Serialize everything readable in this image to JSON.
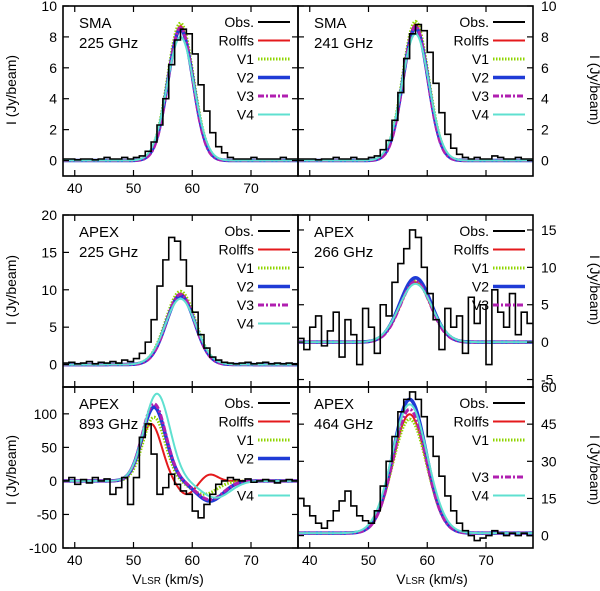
{
  "figure": {
    "xlabel_prefix": "V",
    "xlabel_sub": "LSR",
    "xlabel_suffix": " (km/s)",
    "ylabel": "I (Jy/beam)"
  },
  "legend_entries": [
    {
      "name": "Obs.",
      "color": "#000000",
      "style": "solid"
    },
    {
      "name": "Rolffs",
      "color": "#e41a1c",
      "style": "solid"
    },
    {
      "name": "V1",
      "color": "#8fd400",
      "style": "dotted"
    },
    {
      "name": "V2",
      "color": "#1f3bd6",
      "style": "thick"
    },
    {
      "name": "V3",
      "color": "#b01fb0",
      "style": "dashdot"
    },
    {
      "name": "V4",
      "color": "#5fe0d0",
      "style": "solid"
    }
  ],
  "chart_data": [
    {
      "type": "line",
      "id": "p1",
      "title_line1": "SMA",
      "title_line2": "225 GHz",
      "xlim": [
        38,
        78
      ],
      "ylim": [
        -1,
        10
      ],
      "xticks": [
        "40",
        "50",
        "60",
        "70"
      ],
      "xtick_values": [
        40,
        50,
        60,
        70
      ],
      "yticks": [
        "0",
        "2",
        "4",
        "6",
        "8",
        "10"
      ],
      "ytick_values": [
        0,
        2,
        4,
        6,
        8,
        10
      ],
      "ytick_side": "left",
      "legend_hidden": [],
      "series": [
        {
          "name": "Rolffs",
          "center": 58,
          "amp": 8.7,
          "sigma": 2.1
        },
        {
          "name": "V1",
          "center": 58,
          "amp": 8.9,
          "sigma": 2.2
        },
        {
          "name": "V2",
          "center": 58,
          "amp": 8.5,
          "sigma": 2.15
        },
        {
          "name": "V3",
          "center": 58,
          "amp": 8.6,
          "sigma": 2.1
        },
        {
          "name": "V4",
          "center": 58,
          "amp": 8.0,
          "sigma": 2.3
        }
      ],
      "obs": {
        "start": 38,
        "step": 1,
        "values": [
          0.1,
          0.1,
          0.05,
          0.1,
          0.1,
          0.05,
          0.1,
          0.2,
          0.1,
          0.1,
          0.2,
          0.1,
          0.2,
          0.3,
          0.6,
          1.2,
          2.3,
          4.0,
          6.2,
          7.8,
          8.5,
          8.2,
          6.9,
          4.9,
          3.2,
          1.8,
          0.9,
          0.5,
          0.2,
          0.1,
          0.1,
          0.1,
          0.2,
          0.1,
          0.1,
          0.1,
          0.1,
          0.2,
          0.1,
          0.1
        ]
      }
    },
    {
      "type": "line",
      "id": "p2",
      "title_line1": "SMA",
      "title_line2": "241 GHz",
      "xlim": [
        38,
        78
      ],
      "ylim": [
        -1,
        10
      ],
      "xticks": [],
      "xtick_values": [
        40,
        50,
        60,
        70
      ],
      "yticks": [
        "0",
        "2",
        "4",
        "6",
        "8",
        "10"
      ],
      "ytick_values": [
        0,
        2,
        4,
        6,
        8,
        10
      ],
      "ytick_side": "right",
      "legend_hidden": [],
      "series": [
        {
          "name": "Rolffs",
          "center": 58,
          "amp": 8.8,
          "sigma": 2.1
        },
        {
          "name": "V1",
          "center": 58,
          "amp": 9.0,
          "sigma": 2.2
        },
        {
          "name": "V2",
          "center": 58,
          "amp": 8.6,
          "sigma": 2.15
        },
        {
          "name": "V3",
          "center": 58,
          "amp": 8.7,
          "sigma": 2.1
        },
        {
          "name": "V4",
          "center": 58,
          "amp": 8.2,
          "sigma": 2.3
        }
      ],
      "obs": {
        "start": 38,
        "step": 1,
        "values": [
          0.1,
          0.1,
          0.1,
          0.05,
          0.1,
          0.1,
          0.2,
          0.1,
          0.1,
          0.2,
          0.1,
          0.1,
          0.2,
          0.3,
          0.7,
          1.3,
          2.6,
          4.4,
          6.6,
          8.2,
          8.8,
          8.4,
          7.0,
          5.0,
          3.1,
          1.7,
          0.8,
          0.4,
          0.2,
          0.1,
          0.2,
          0.1,
          0.1,
          0.3,
          0.2,
          0.1,
          0.1,
          0.2,
          0.1,
          0.1
        ]
      }
    },
    {
      "type": "line",
      "id": "p3",
      "title_line1": "APEX",
      "title_line2": "225 GHz",
      "xlim": [
        38,
        78
      ],
      "ylim": [
        -3,
        20
      ],
      "xticks": [],
      "xtick_values": [
        40,
        50,
        60,
        70
      ],
      "yticks": [
        "0",
        "5",
        "10",
        "15",
        "20"
      ],
      "ytick_values": [
        0,
        5,
        10,
        15,
        20
      ],
      "ytick_side": "left",
      "legend_hidden": [],
      "series": [
        {
          "name": "Rolffs",
          "center": 58,
          "amp": 9.5,
          "sigma": 2.4
        },
        {
          "name": "V1",
          "center": 58,
          "amp": 9.8,
          "sigma": 2.5
        },
        {
          "name": "V2",
          "center": 58,
          "amp": 9.2,
          "sigma": 2.45
        },
        {
          "name": "V3",
          "center": 58,
          "amp": 9.4,
          "sigma": 2.4
        },
        {
          "name": "V4",
          "center": 58,
          "amp": 8.8,
          "sigma": 2.6
        }
      ],
      "obs": {
        "start": 38,
        "step": 1,
        "values": [
          0.2,
          0.3,
          0.1,
          0.2,
          0.4,
          0.1,
          0.3,
          0.2,
          0.4,
          0.2,
          0.6,
          0.4,
          0.8,
          1.5,
          3.0,
          6.0,
          10.5,
          14.0,
          17.0,
          16.5,
          14.0,
          10.5,
          7.0,
          4.0,
          2.2,
          1.0,
          0.6,
          0.3,
          0.2,
          0.1,
          0.2,
          0.3,
          0.1,
          0.2,
          0.3,
          0.1,
          0.2,
          0.1,
          0.2,
          0.1
        ]
      }
    },
    {
      "type": "line",
      "id": "p4",
      "title_line1": "APEX",
      "title_line2": "266 GHz",
      "xlim": [
        38,
        78
      ],
      "ylim": [
        -6,
        17
      ],
      "xticks": [],
      "xtick_values": [
        40,
        50,
        60,
        70
      ],
      "yticks": [
        "-5",
        "0",
        "5",
        "10",
        "15"
      ],
      "ytick_values": [
        -5,
        0,
        5,
        10,
        15
      ],
      "ytick_side": "right",
      "legend_hidden": [
        "V4"
      ],
      "series": [
        {
          "name": "Rolffs",
          "center": 58,
          "amp": 8.0,
          "sigma": 2.6
        },
        {
          "name": "V1",
          "center": 58,
          "amp": 8.3,
          "sigma": 2.7
        },
        {
          "name": "V2",
          "center": 58,
          "amp": 8.6,
          "sigma": 2.65
        },
        {
          "name": "V3",
          "center": 58,
          "amp": 8.1,
          "sigma": 2.6
        },
        {
          "name": "V4",
          "center": 58,
          "amp": 7.8,
          "sigma": 2.8
        }
      ],
      "obs": {
        "start": 38,
        "step": 1,
        "values": [
          0.5,
          -1.0,
          2.0,
          3.5,
          -0.5,
          1.5,
          4.0,
          -2.0,
          3.0,
          1.0,
          -3.0,
          4.5,
          2.0,
          -1.5,
          5.0,
          3.5,
          8.0,
          10.5,
          12.5,
          15.0,
          14.0,
          10.0,
          6.5,
          3.0,
          -1.0,
          4.5,
          2.0,
          3.5,
          -1.5,
          6.0,
          2.5,
          5.0,
          -3.0,
          7.0,
          4.0,
          2.0,
          6.5,
          1.0,
          4.0,
          2.5
        ]
      }
    },
    {
      "type": "line",
      "id": "p5",
      "title_line1": "APEX",
      "title_line2": "893 GHz",
      "xlim": [
        38,
        78
      ],
      "ylim": [
        -100,
        140
      ],
      "xticks": [
        "40",
        "50",
        "60",
        "70"
      ],
      "xtick_values": [
        40,
        50,
        60,
        70
      ],
      "yticks": [
        "-100",
        "-50",
        "0",
        "50",
        "100"
      ],
      "ytick_values": [
        -100,
        -50,
        0,
        50,
        100
      ],
      "ytick_side": "left",
      "legend_hidden": [
        "V3"
      ],
      "series": [
        {
          "name": "Rolffs",
          "center": 53,
          "amp": 85,
          "sigma": 1.8,
          "dip_center": 59,
          "dip_amp": -20,
          "dip_sigma": 1.5,
          "bump_center": 63,
          "bump_amp": 10,
          "bump_sigma": 1.3
        },
        {
          "name": "V1",
          "center": 53.5,
          "amp": 95,
          "sigma": 1.9,
          "dip_center": 62,
          "dip_amp": -20,
          "dip_sigma": 2.2
        },
        {
          "name": "V2",
          "center": 53.5,
          "amp": 110,
          "sigma": 2.0,
          "dip_center": 63,
          "dip_amp": -30,
          "dip_sigma": 2.3
        },
        {
          "name": "V3",
          "center": 53.5,
          "amp": 115,
          "sigma": 2.0,
          "dip_center": 63,
          "dip_amp": -28,
          "dip_sigma": 2.3
        },
        {
          "name": "V4",
          "center": 54,
          "amp": 130,
          "sigma": 2.2,
          "dip_center": 64,
          "dip_amp": -25,
          "dip_sigma": 2.5
        }
      ],
      "obs": {
        "start": 38,
        "step": 1,
        "values": [
          0,
          5,
          -5,
          2,
          -3,
          5,
          0,
          3,
          -20,
          -10,
          5,
          -35,
          5,
          65,
          85,
          40,
          -20,
          -10,
          10,
          -5,
          -15,
          -20,
          -45,
          -55,
          -35,
          -20,
          -5,
          0,
          5,
          2,
          0,
          3,
          -2,
          0,
          2,
          0,
          -3,
          0,
          2,
          0
        ]
      }
    },
    {
      "type": "line",
      "id": "p6",
      "title_line1": "APEX",
      "title_line2": "464 GHz",
      "xlim": [
        38,
        78
      ],
      "ylim": [
        -5,
        60
      ],
      "xticks": [
        "40",
        "50",
        "60",
        "70"
      ],
      "xtick_values": [
        40,
        50,
        60,
        70
      ],
      "yticks": [
        "0",
        "15",
        "30",
        "45",
        "60"
      ],
      "ytick_values": [
        0,
        15,
        30,
        45,
        60
      ],
      "ytick_side": "right",
      "legend_hidden": [
        "V2"
      ],
      "series": [
        {
          "name": "Rolffs",
          "center": 57,
          "amp": 48,
          "sigma": 2.8,
          "base": 1
        },
        {
          "name": "V1",
          "center": 57,
          "amp": 46,
          "sigma": 2.9,
          "base": 1
        },
        {
          "name": "V2",
          "center": 57,
          "amp": 54,
          "sigma": 2.8,
          "base": 1
        },
        {
          "name": "V3",
          "center": 57,
          "amp": 50,
          "sigma": 2.8,
          "base": 1
        },
        {
          "name": "V4",
          "center": 57,
          "amp": 52,
          "sigma": 3.0,
          "base": 1
        }
      ],
      "obs": {
        "start": 38,
        "step": 1,
        "values": [
          15,
          12,
          8,
          5,
          3,
          6,
          10,
          14,
          18,
          12,
          8,
          6,
          5,
          10,
          20,
          30,
          40,
          50,
          55,
          58,
          55,
          48,
          40,
          32,
          24,
          16,
          10,
          5,
          2,
          0,
          -2,
          -1,
          0,
          2,
          1,
          0,
          1,
          0,
          1,
          0
        ]
      }
    }
  ]
}
